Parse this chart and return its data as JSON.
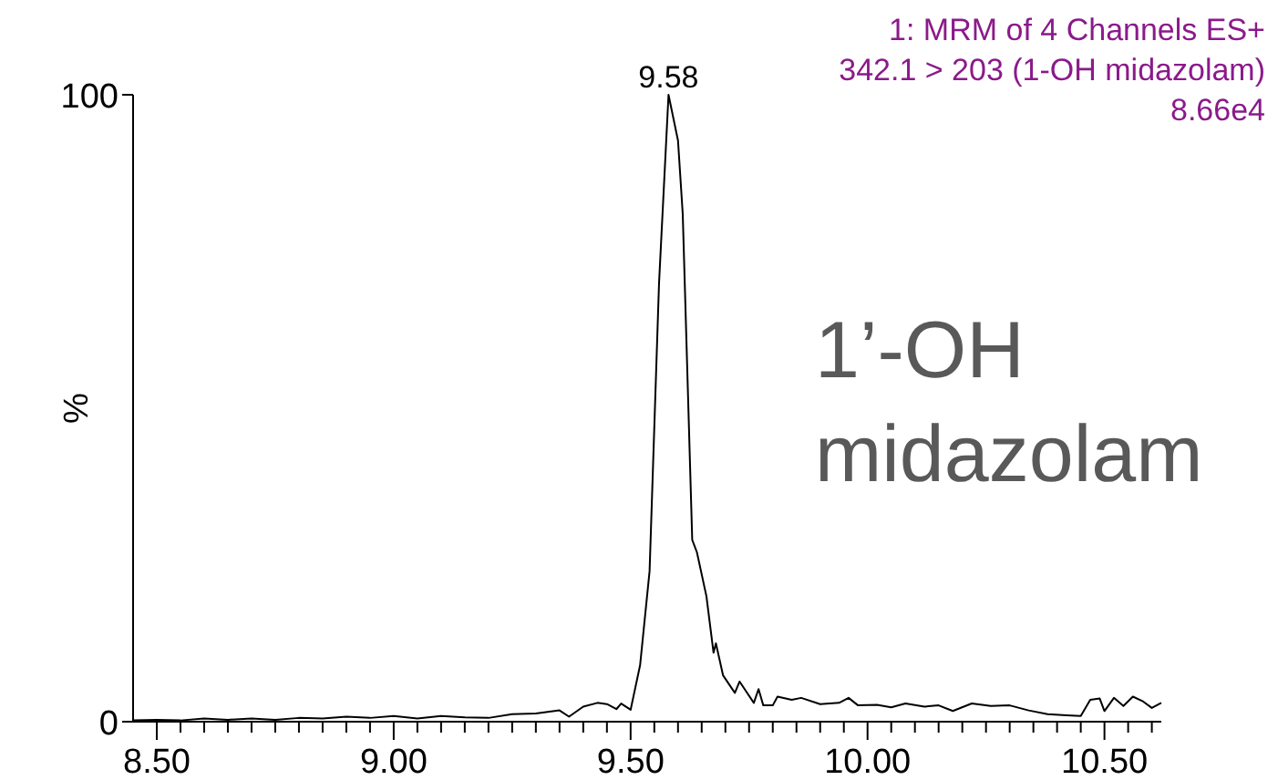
{
  "chart_data": {
    "type": "line",
    "title": "1: MRM of 4 Channels ES+",
    "subtitle": "342.1 > 203 (1-OH midazolam)",
    "ylabel": "%",
    "annotations": [
      "8.66e4",
      {
        "text": "9.58",
        "x": 9.58,
        "y": 100
      },
      "1’-OH midazolam"
    ],
    "xlim": [
      8.45,
      10.62
    ],
    "ylim": [
      0,
      100
    ],
    "yticks": [
      0,
      100
    ],
    "xticks": [
      {
        "value": 8.5,
        "label": "8.50"
      },
      {
        "value": 8.55,
        "label": null
      },
      {
        "value": 8.6,
        "label": null
      },
      {
        "value": 8.65,
        "label": null
      },
      {
        "value": 8.7,
        "label": null
      },
      {
        "value": 8.75,
        "label": null
      },
      {
        "value": 8.8,
        "label": null
      },
      {
        "value": 8.85,
        "label": null
      },
      {
        "value": 8.9,
        "label": null
      },
      {
        "value": 8.95,
        "label": null
      },
      {
        "value": 9.0,
        "label": "9.00"
      },
      {
        "value": 9.05,
        "label": null
      },
      {
        "value": 9.1,
        "label": null
      },
      {
        "value": 9.15,
        "label": null
      },
      {
        "value": 9.2,
        "label": null
      },
      {
        "value": 9.25,
        "label": null
      },
      {
        "value": 9.3,
        "label": null
      },
      {
        "value": 9.35,
        "label": null
      },
      {
        "value": 9.4,
        "label": null
      },
      {
        "value": 9.45,
        "label": null
      },
      {
        "value": 9.5,
        "label": "9.50"
      },
      {
        "value": 9.55,
        "label": null
      },
      {
        "value": 9.6,
        "label": null
      },
      {
        "value": 9.65,
        "label": null
      },
      {
        "value": 9.7,
        "label": null
      },
      {
        "value": 9.75,
        "label": null
      },
      {
        "value": 9.8,
        "label": null
      },
      {
        "value": 9.85,
        "label": null
      },
      {
        "value": 9.9,
        "label": null
      },
      {
        "value": 9.95,
        "label": null
      },
      {
        "value": 10.0,
        "label": "10.00"
      },
      {
        "value": 10.05,
        "label": null
      },
      {
        "value": 10.1,
        "label": null
      },
      {
        "value": 10.15,
        "label": null
      },
      {
        "value": 10.2,
        "label": null
      },
      {
        "value": 10.25,
        "label": null
      },
      {
        "value": 10.3,
        "label": null
      },
      {
        "value": 10.35,
        "label": null
      },
      {
        "value": 10.4,
        "label": null
      },
      {
        "value": 10.45,
        "label": null
      },
      {
        "value": 10.5,
        "label": "10.50"
      },
      {
        "value": 10.55,
        "label": null
      },
      {
        "value": 10.6,
        "label": null
      }
    ],
    "grid": false,
    "marker": "none",
    "line_style": "solid",
    "series": [
      {
        "color": "#000000",
        "x": [
          8.45,
          8.5,
          8.55,
          8.6,
          8.65,
          8.7,
          8.75,
          8.8,
          8.85,
          8.9,
          8.95,
          9.0,
          9.05,
          9.1,
          9.15,
          9.2,
          9.25,
          9.3,
          9.35,
          9.37,
          9.4,
          9.43,
          9.45,
          9.47,
          9.48,
          9.5,
          9.52,
          9.54,
          9.56,
          9.58,
          9.6,
          9.61,
          9.63,
          9.64,
          9.66,
          9.675,
          9.68,
          9.695,
          9.72,
          9.73,
          9.76,
          9.77,
          9.78,
          9.8,
          9.81,
          9.84,
          9.86,
          9.9,
          9.94,
          9.96,
          9.98,
          10.02,
          10.05,
          10.08,
          10.12,
          10.15,
          10.18,
          10.22,
          10.26,
          10.3,
          10.34,
          10.38,
          10.42,
          10.45,
          10.47,
          10.49,
          10.5,
          10.52,
          10.54,
          10.56,
          10.58,
          10.6,
          10.62
        ],
        "values": [
          0.2,
          0.3,
          0.2,
          0.5,
          0.3,
          0.5,
          0.3,
          0.6,
          0.5,
          0.8,
          0.6,
          0.9,
          0.5,
          0.9,
          0.7,
          0.6,
          1.2,
          1.3,
          1.8,
          0.8,
          2.4,
          3.0,
          2.8,
          2.0,
          2.9,
          1.9,
          9,
          24,
          70,
          100,
          92.7,
          81,
          29,
          27,
          20,
          11,
          12.5,
          7.4,
          4.6,
          6.4,
          3,
          5.2,
          2.6,
          2.6,
          4,
          3.5,
          3.8,
          2.8,
          3.0,
          3.8,
          2.6,
          2.7,
          2.3,
          2.9,
          2.4,
          2.6,
          1.7,
          2.9,
          2.5,
          2.6,
          1.8,
          1.2,
          1.0,
          0.9,
          3.5,
          3.7,
          1.7,
          3.8,
          2.5,
          4.0,
          3.3,
          2.2,
          3.0
        ]
      }
    ]
  }
}
